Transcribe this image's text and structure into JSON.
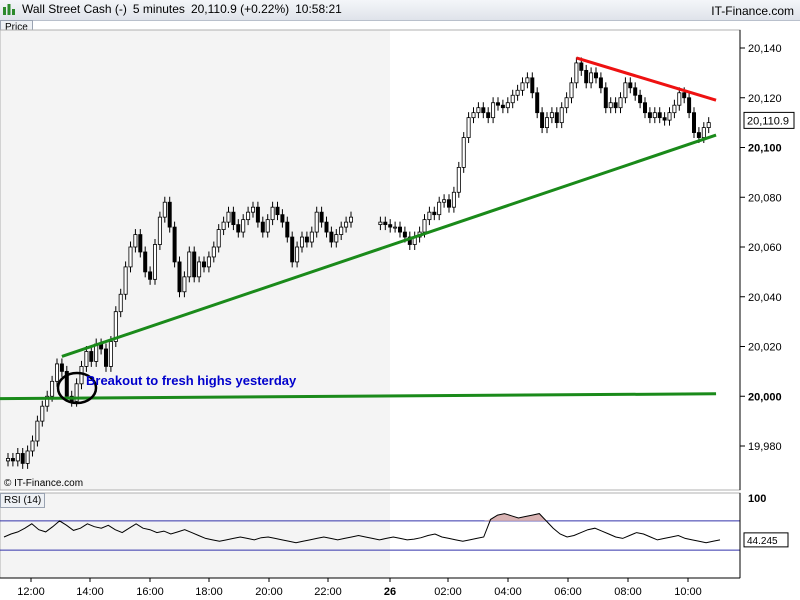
{
  "header": {
    "instrument": "Wall Street Cash (-)",
    "timeframe": "5 minutes",
    "last_price": "20,110.9 (+0.22%)",
    "time": "10:58:21",
    "brand": "IT-Finance.com"
  },
  "panels": {
    "price_tab": "Price",
    "rsi_tab": "RSI (14)",
    "copyright": "© IT-Finance.com",
    "annotation": "Breakout to fresh highs yesterday"
  },
  "colors": {
    "support_line": "#1a8a1a",
    "resistance_line": "#ee1111",
    "annotation_text": "#0000cc",
    "rsi_band": "#3333aa",
    "rsi_fill": "#d9b3b3",
    "highlight_session": "#f4f4f4"
  },
  "chart_data": [
    {
      "type": "candlestick",
      "title": "Wall Street Cash (-)",
      "ylim": [
        19968,
        20148
      ],
      "y_ticks": [
        19980,
        20000,
        20020,
        20040,
        20060,
        20080,
        20100,
        20120,
        20140
      ],
      "y_tick_labels": [
        "19,980",
        "20,000",
        "20,020",
        "20,040",
        "20,060",
        "20,080",
        "20,100",
        "20,120",
        "20,140"
      ],
      "x_tick_labels": [
        "12:00",
        "14:00",
        "16:00",
        "18:00",
        "20:00",
        "22:00",
        "26",
        "02:00",
        "04:00",
        "06:00",
        "08:00",
        "10:00"
      ],
      "last_value_label": "20,110.9",
      "last_value": 20110.9,
      "segments": [
        {
          "name": "day1",
          "points": [
            [
              0,
              19975
            ],
            [
              2,
              19974
            ],
            [
              4,
              19977
            ],
            [
              6,
              19973
            ],
            [
              8,
              19978
            ],
            [
              10,
              19982
            ],
            [
              12,
              19990
            ],
            [
              14,
              19996
            ],
            [
              16,
              20000
            ],
            [
              18,
              20006
            ],
            [
              20,
              20013
            ],
            [
              22,
              20010
            ],
            [
              24,
              20000
            ],
            [
              26,
              19998
            ],
            [
              28,
              20005
            ],
            [
              30,
              20012
            ],
            [
              32,
              20018
            ],
            [
              34,
              20014
            ],
            [
              36,
              20021
            ],
            [
              38,
              20019
            ],
            [
              40,
              20012
            ],
            [
              42,
              20022
            ],
            [
              44,
              20034
            ],
            [
              46,
              20041
            ],
            [
              48,
              20052
            ],
            [
              50,
              20060
            ],
            [
              52,
              20065
            ],
            [
              54,
              20058
            ],
            [
              56,
              20050
            ],
            [
              58,
              20047
            ],
            [
              60,
              20061
            ],
            [
              62,
              20072
            ],
            [
              64,
              20078
            ],
            [
              66,
              20068
            ],
            [
              68,
              20054
            ],
            [
              70,
              20042
            ],
            [
              72,
              20048
            ],
            [
              74,
              20058
            ],
            [
              76,
              20048
            ],
            [
              78,
              20054
            ],
            [
              80,
              20052
            ],
            [
              82,
              20056
            ],
            [
              84,
              20060
            ],
            [
              86,
              20067
            ],
            [
              88,
              20070
            ],
            [
              90,
              20074
            ],
            [
              92,
              20069
            ],
            [
              94,
              20066
            ],
            [
              96,
              20071
            ],
            [
              98,
              20074
            ],
            [
              100,
              20076
            ],
            [
              102,
              20070
            ],
            [
              104,
              20066
            ],
            [
              106,
              20071
            ],
            [
              108,
              20076
            ],
            [
              110,
              20073
            ],
            [
              112,
              20070
            ],
            [
              114,
              20064
            ],
            [
              116,
              20054
            ],
            [
              118,
              20060
            ],
            [
              120,
              20064
            ],
            [
              122,
              20062
            ],
            [
              124,
              20066
            ],
            [
              126,
              20074
            ],
            [
              128,
              20070
            ],
            [
              130,
              20066
            ],
            [
              132,
              20062
            ],
            [
              134,
              20065
            ],
            [
              136,
              20068
            ],
            [
              138,
              20070
            ],
            [
              140,
              20072
            ]
          ]
        },
        {
          "name": "day2",
          "points": [
            [
              152,
              20070
            ],
            [
              154,
              20069
            ],
            [
              156,
              20068
            ],
            [
              158,
              20068
            ],
            [
              160,
              20066
            ],
            [
              162,
              20064
            ],
            [
              164,
              20061
            ],
            [
              166,
              20064
            ],
            [
              168,
              20066
            ],
            [
              170,
              20071
            ],
            [
              172,
              20074
            ],
            [
              174,
              20073
            ],
            [
              176,
              20078
            ],
            [
              178,
              20079
            ],
            [
              180,
              20076
            ],
            [
              182,
              20082
            ],
            [
              184,
              20092
            ],
            [
              186,
              20104
            ],
            [
              188,
              20112
            ],
            [
              190,
              20114
            ],
            [
              192,
              20116
            ],
            [
              194,
              20114
            ],
            [
              196,
              20112
            ],
            [
              198,
              20118
            ],
            [
              200,
              20117
            ],
            [
              202,
              20116
            ],
            [
              204,
              20118
            ],
            [
              206,
              20121
            ],
            [
              208,
              20123
            ],
            [
              210,
              20126
            ],
            [
              212,
              20128
            ],
            [
              214,
              20122
            ],
            [
              216,
              20114
            ],
            [
              218,
              20108
            ],
            [
              220,
              20112
            ],
            [
              222,
              20114
            ],
            [
              224,
              20110
            ],
            [
              226,
              20116
            ],
            [
              228,
              20120
            ],
            [
              230,
              20126
            ],
            [
              232,
              20134
            ],
            [
              234,
              20131
            ],
            [
              236,
              20126
            ],
            [
              238,
              20130
            ],
            [
              240,
              20128
            ],
            [
              242,
              20124
            ],
            [
              244,
              20116
            ],
            [
              246,
              20118
            ],
            [
              248,
              20116
            ],
            [
              250,
              20120
            ],
            [
              252,
              20126
            ],
            [
              254,
              20124
            ],
            [
              256,
              20121
            ],
            [
              258,
              20118
            ],
            [
              260,
              20114
            ],
            [
              262,
              20112
            ],
            [
              264,
              20114
            ],
            [
              266,
              20112
            ],
            [
              268,
              20111
            ],
            [
              270,
              20114
            ],
            [
              272,
              20117
            ],
            [
              274,
              20122
            ],
            [
              276,
              20120
            ],
            [
              278,
              20114
            ],
            [
              280,
              20106
            ],
            [
              282,
              20104
            ],
            [
              284,
              20108
            ],
            [
              286,
              20110
            ]
          ]
        }
      ],
      "trendlines": [
        {
          "name": "rising-support",
          "from": [
            22,
            20016
          ],
          "to": [
            289,
            20105
          ]
        },
        {
          "name": "breakout-level",
          "from": [
            -10,
            19999
          ],
          "to": [
            289,
            20001
          ]
        },
        {
          "name": "falling-resistance",
          "from": [
            232,
            20136
          ],
          "to": [
            289,
            20119
          ]
        }
      ]
    },
    {
      "type": "line",
      "title": "RSI (14)",
      "ylim": [
        0,
        100
      ],
      "y_ticks": [
        100
      ],
      "y_tick_labels": [
        "100"
      ],
      "upper_band": 70,
      "lower_band": 30,
      "last_value_label": "44.245",
      "values": [
        48,
        52,
        55,
        60,
        66,
        58,
        55,
        62,
        70,
        64,
        57,
        60,
        66,
        62,
        60,
        64,
        58,
        54,
        60,
        66,
        60,
        58,
        54,
        56,
        52,
        55,
        58,
        54,
        50,
        46,
        44,
        42,
        44,
        46,
        48,
        46,
        44,
        47,
        48,
        46,
        44,
        42,
        40,
        42,
        44,
        46,
        48,
        46,
        44,
        46,
        48,
        50,
        48,
        46,
        44,
        46,
        48,
        46,
        44,
        45,
        47,
        50,
        52,
        48,
        46,
        44,
        42,
        44,
        46,
        48,
        72,
        78,
        80,
        77,
        74,
        76,
        78,
        80,
        70,
        60,
        52,
        48,
        50,
        54,
        58,
        60,
        56,
        52,
        48,
        46,
        50,
        54,
        52,
        48,
        44,
        46,
        48,
        50,
        46,
        44,
        42,
        40,
        42,
        44
      ]
    }
  ]
}
